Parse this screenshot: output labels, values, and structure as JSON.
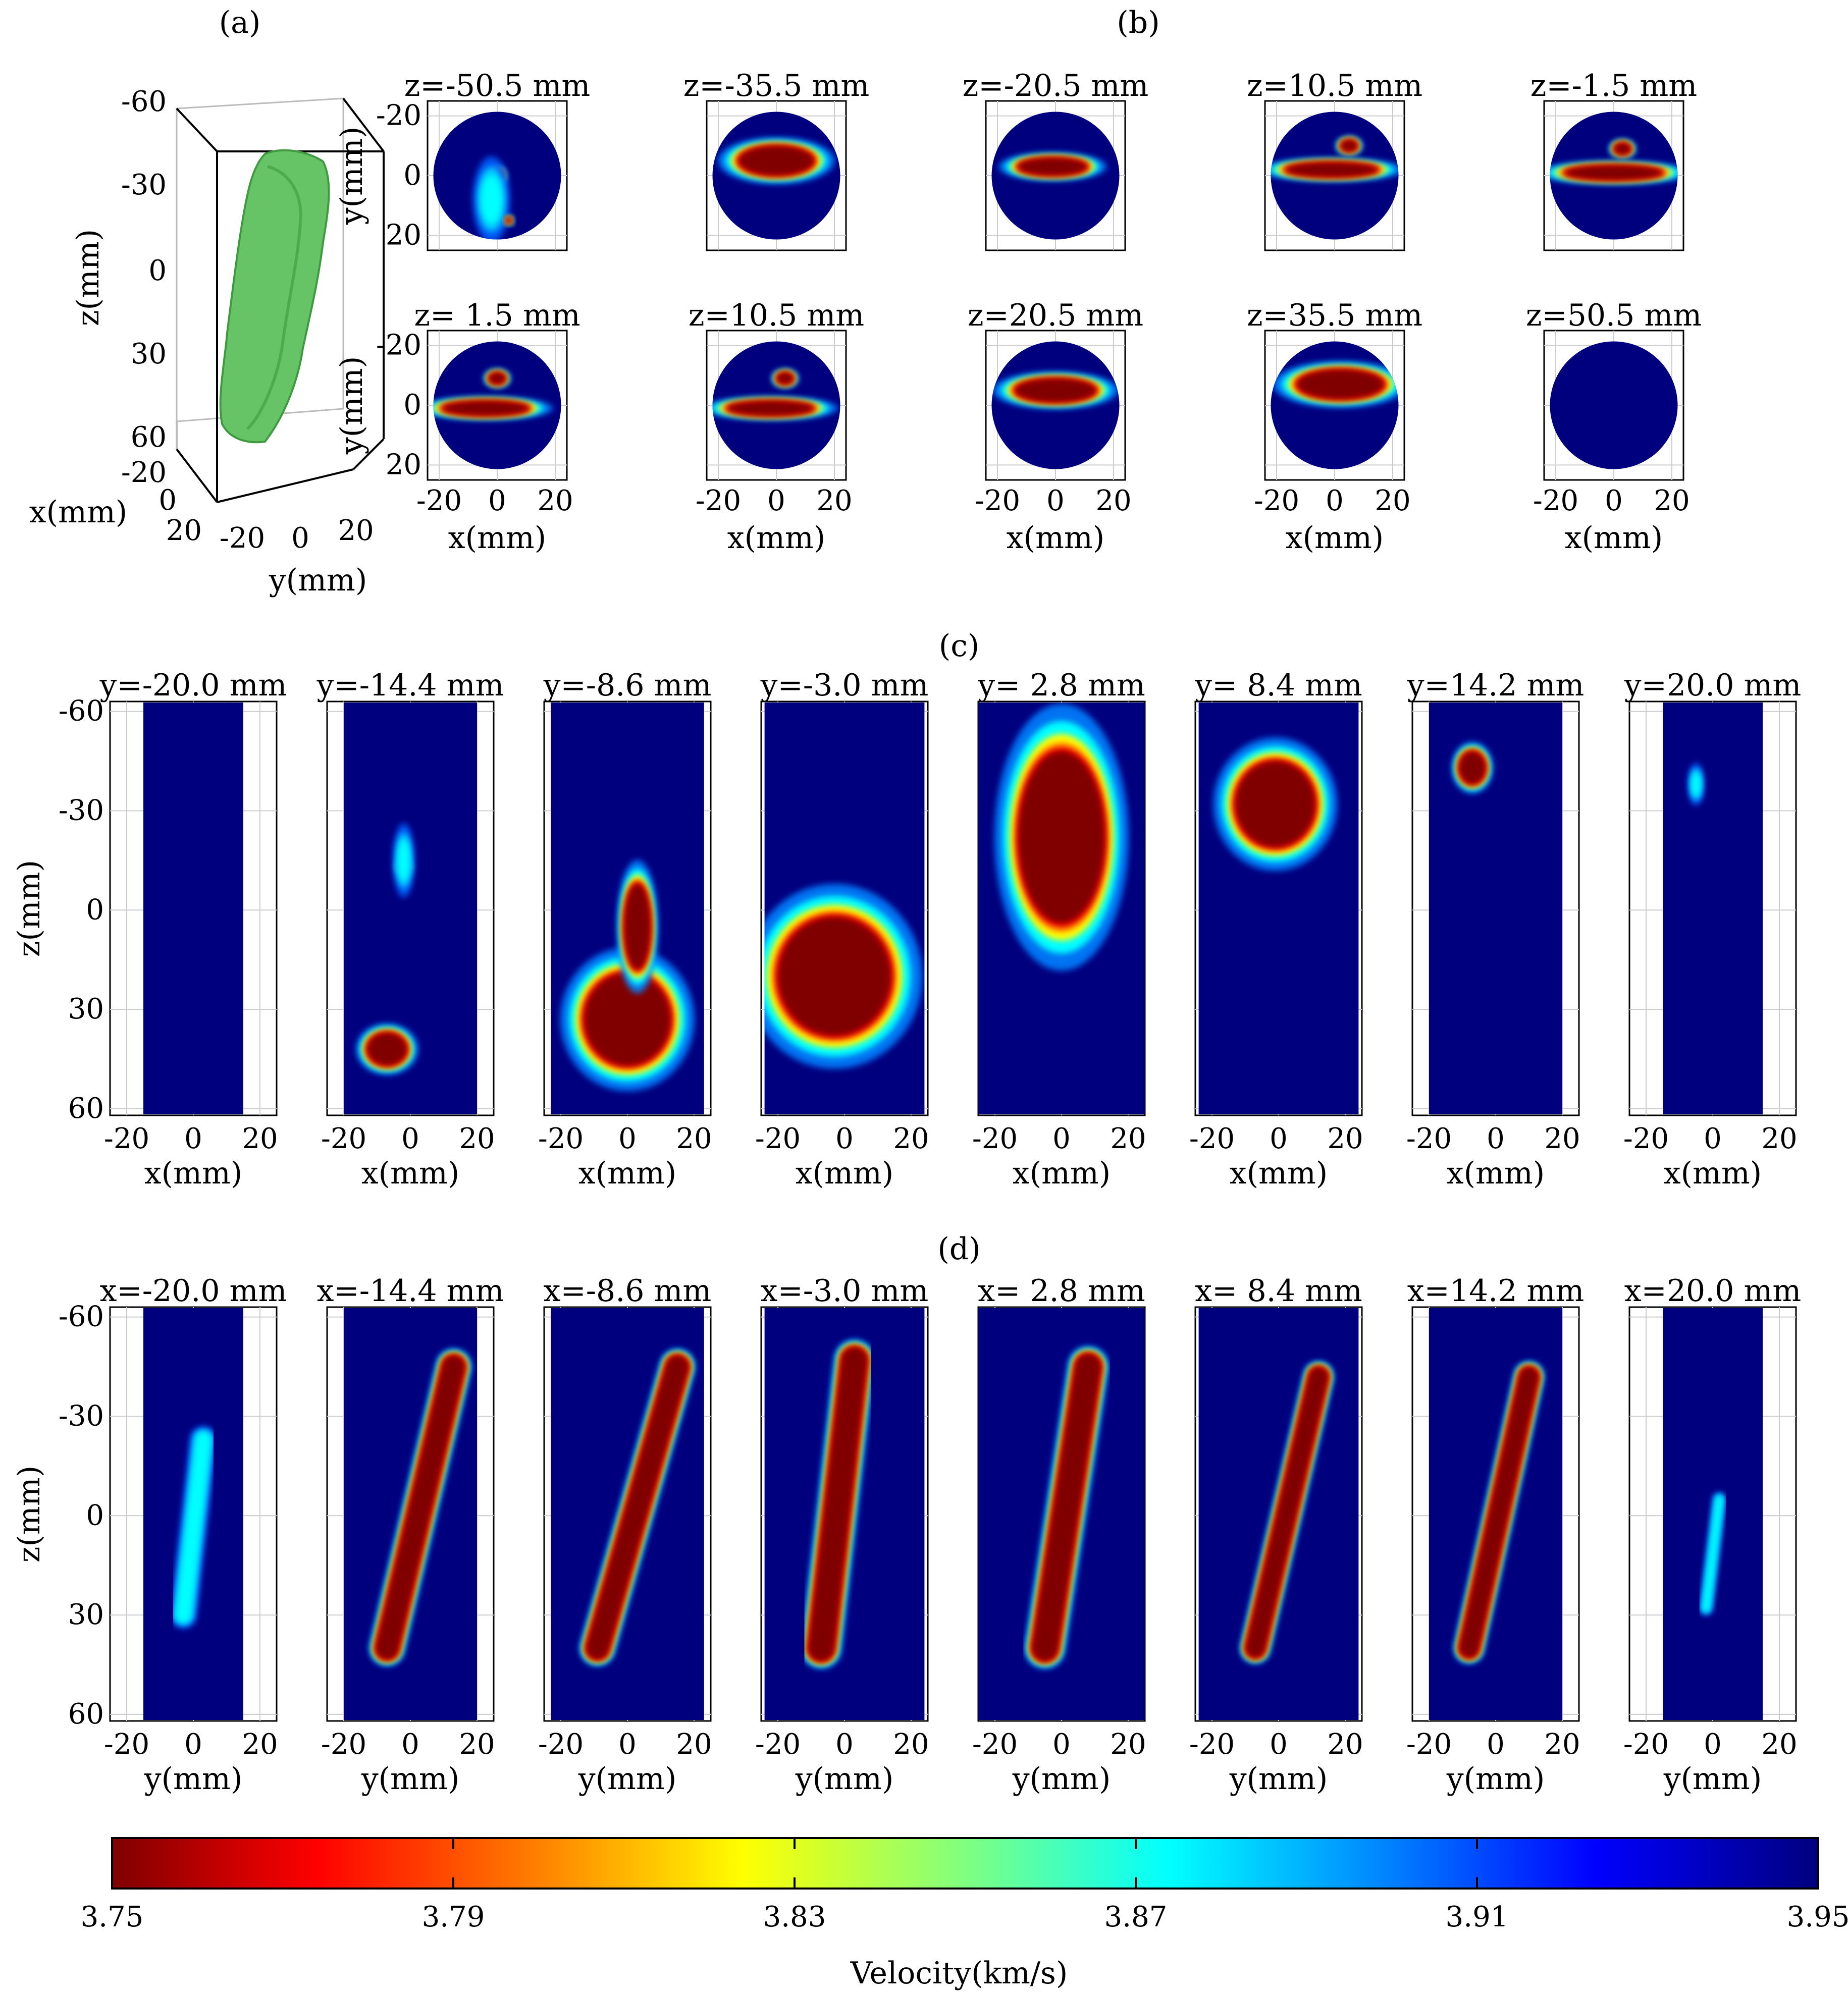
{
  "chart_data": {
    "type": "heatmap",
    "title": "",
    "colorscale": [
      "#7f0000",
      "#ff0000",
      "#ff8000",
      "#ffff00",
      "#80ff80",
      "#00ffff",
      "#0080ff",
      "#0000ff",
      "#00007f"
    ],
    "colorbar": {
      "label": "Velocity(km/s)",
      "range": [
        3.75,
        3.95
      ],
      "ticks": [
        "3.75",
        "3.79",
        "3.83",
        "3.87",
        "3.91",
        "3.95"
      ],
      "background_color": "#00007f",
      "anomaly_core_color": "#800000"
    },
    "panels": [
      {
        "id": "a",
        "label": "(a)",
        "type": "isosurface-3d",
        "xlabel": "x(mm)",
        "ylabel": "y(mm)",
        "zlabel": "z(mm)",
        "z_ticks": [
          "-60",
          "-30",
          "0",
          "30",
          "60"
        ],
        "x_ticks": [
          "-20",
          "0",
          "20"
        ],
        "y_ticks": [
          "-20",
          "0",
          "20"
        ],
        "surface_color": "#5fbf5f"
      },
      {
        "id": "b",
        "label": "(b)",
        "type": "horizontal-slices",
        "xlabel": "x(mm)",
        "ylabel": "y(mm)",
        "xticks": [
          "-20",
          "0",
          "20"
        ],
        "yticks": [
          "-20",
          "0",
          "20"
        ],
        "xlim": [
          -24,
          24
        ],
        "ylim": [
          -25,
          25
        ],
        "slices": [
          {
            "title": "z=-50.5 mm",
            "z": -50.5,
            "blobs": [
              {
                "x": 0,
                "y": 0,
                "rx": 2,
                "ry": 2
              },
              {
                "x": -2,
                "y": 8,
                "rx": 4,
                "ry": 9,
                "weak": true
              },
              {
                "x": 4,
                "y": 15,
                "rx": 1,
                "ry": 1
              }
            ]
          },
          {
            "title": "z=-35.5 mm",
            "z": -35.5,
            "blobs": [
              {
                "x": 0,
                "y": -5,
                "rx": 13,
                "ry": 5
              }
            ]
          },
          {
            "title": "z=-20.5 mm",
            "z": -20.5,
            "blobs": [
              {
                "x": -1,
                "y": -3,
                "rx": 12,
                "ry": 3
              }
            ]
          },
          {
            "title": "z=10.5 mm",
            "z": 10.5,
            "blobs": [
              {
                "x": -1,
                "y": -2,
                "rx": 16,
                "ry": 2.5
              },
              {
                "x": 5,
                "y": -10,
                "rx": 3,
                "ry": 2
              }
            ]
          },
          {
            "title": "z=-1.5 mm",
            "z": -1.5,
            "blobs": [
              {
                "x": 0,
                "y": -1,
                "rx": 17,
                "ry": 2.5
              },
              {
                "x": 3,
                "y": -9,
                "rx": 3,
                "ry": 2
              }
            ]
          },
          {
            "title": "z= 1.5 mm",
            "z": 1.5,
            "blobs": [
              {
                "x": -4,
                "y": 1,
                "rx": 15,
                "ry": 2.5
              },
              {
                "x": 0,
                "y": -9,
                "rx": 3,
                "ry": 2
              }
            ]
          },
          {
            "title": "z=10.5 mm",
            "z": 10.5,
            "blobs": [
              {
                "x": -2,
                "y": 1,
                "rx": 15,
                "ry": 2.5
              },
              {
                "x": 3,
                "y": -9,
                "rx": 3,
                "ry": 2
              }
            ]
          },
          {
            "title": "z=20.5 mm",
            "z": 20.5,
            "blobs": [
              {
                "x": 0,
                "y": -5,
                "rx": 14,
                "ry": 4
              }
            ]
          },
          {
            "title": "z=35.5 mm",
            "z": 35.5,
            "blobs": [
              {
                "x": 2,
                "y": -7,
                "rx": 15,
                "ry": 5
              }
            ]
          },
          {
            "title": "z=50.5 mm",
            "z": 50.5,
            "blobs": []
          }
        ]
      },
      {
        "id": "c",
        "label": "(c)",
        "type": "vertical-slices",
        "xlabel": "x(mm)",
        "ylabel": "z(mm)",
        "xticks": [
          "-20",
          "0",
          "20"
        ],
        "yticks": [
          "-60",
          "-30",
          "0",
          "30",
          "60"
        ],
        "xlim": [
          -25,
          25
        ],
        "ylim": [
          -63,
          62
        ],
        "slices": [
          {
            "title": "y=-20.0 mm",
            "y": -20.0,
            "halfwidth": 15,
            "blobs": []
          },
          {
            "title": "y=-14.4 mm",
            "y": -14.4,
            "halfwidth": 20,
            "blobs": [
              {
                "x": -7,
                "y": 42,
                "rx": 6,
                "ry": 5
              },
              {
                "x": -2,
                "y": -13,
                "rx": 1.5,
                "ry": 1.5
              },
              {
                "x": -2,
                "y": -15,
                "rx": 2,
                "ry": 7,
                "weak": true
              }
            ]
          },
          {
            "title": "y=-8.6 mm",
            "y": -8.6,
            "halfwidth": 23,
            "blobs": [
              {
                "x": 0,
                "y": 33,
                "rx": 13,
                "ry": 14
              },
              {
                "x": 3,
                "y": 5,
                "rx": 4,
                "ry": 13
              }
            ]
          },
          {
            "title": "y=-3.0 mm",
            "y": -3.0,
            "halfwidth": 24,
            "blobs": [
              {
                "x": -3,
                "y": 20,
                "rx": 17,
                "ry": 18
              }
            ]
          },
          {
            "title": "y= 2.8 mm",
            "y": 2.8,
            "halfwidth": 25,
            "blobs": [
              {
                "x": 0,
                "y": -22,
                "rx": 13,
                "ry": 26
              }
            ]
          },
          {
            "title": "y= 8.4 mm",
            "y": 8.4,
            "halfwidth": 24,
            "blobs": [
              {
                "x": -1,
                "y": -32,
                "rx": 12,
                "ry": 13
              }
            ]
          },
          {
            "title": "y=14.2 mm",
            "y": 14.2,
            "halfwidth": 20,
            "blobs": [
              {
                "x": -7,
                "y": -43,
                "rx": 4,
                "ry": 5
              }
            ]
          },
          {
            "title": "y=20.0 mm",
            "y": 20.0,
            "halfwidth": 15,
            "blobs": [
              {
                "x": -5,
                "y": -38,
                "rx": 1.5,
                "ry": 4,
                "weak": true
              }
            ]
          }
        ]
      },
      {
        "id": "d",
        "label": "(d)",
        "type": "vertical-slices",
        "xlabel": "y(mm)",
        "ylabel": "z(mm)",
        "xticks": [
          "-20",
          "0",
          "20"
        ],
        "yticks": [
          "-60",
          "-30",
          "0",
          "30",
          "60"
        ],
        "xlim": [
          -25,
          25
        ],
        "ylim": [
          -63,
          62
        ],
        "slices": [
          {
            "title": "x=-20.0 mm",
            "x": -20.0,
            "halfwidth": 15,
            "streak": {
              "x1": 3,
              "y1": -23,
              "x2": -3,
              "y2": 30,
              "w": 2.5,
              "weak": true
            }
          },
          {
            "title": "x=-14.4 mm",
            "x": -14.4,
            "halfwidth": 20,
            "streak": {
              "x1": 13,
              "y1": -45,
              "x2": -7,
              "y2": 40,
              "w": 3.5
            }
          },
          {
            "title": "x=-8.6 mm",
            "x": -8.6,
            "halfwidth": 23,
            "streak": {
              "x1": 15,
              "y1": -45,
              "x2": -9,
              "y2": 40,
              "w": 3.5
            }
          },
          {
            "title": "x=-3.0 mm",
            "x": -3.0,
            "halfwidth": 24,
            "streak": {
              "x1": 3,
              "y1": -47,
              "x2": -7,
              "y2": 40,
              "w": 4
            }
          },
          {
            "title": "x= 2.8 mm",
            "x": 2.8,
            "halfwidth": 25,
            "streak": {
              "x1": 8,
              "y1": -45,
              "x2": -5,
              "y2": 40,
              "w": 4
            }
          },
          {
            "title": "x= 8.4 mm",
            "x": 8.4,
            "halfwidth": 24,
            "streak": {
              "x1": 12,
              "y1": -42,
              "x2": -7,
              "y2": 40,
              "w": 3
            }
          },
          {
            "title": "x=14.2 mm",
            "x": 14.2,
            "halfwidth": 20,
            "streak": {
              "x1": 10,
              "y1": -42,
              "x2": -8,
              "y2": 40,
              "w": 3
            }
          },
          {
            "title": "x=20.0 mm",
            "x": 20.0,
            "halfwidth": 15,
            "streak": {
              "x1": 2,
              "y1": -5,
              "x2": -2,
              "y2": 28,
              "w": 1.2,
              "weak": true
            }
          }
        ]
      }
    ]
  }
}
